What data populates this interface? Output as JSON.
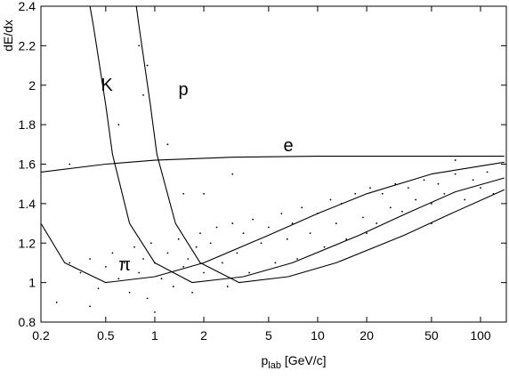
{
  "chart_data": {
    "type": "line",
    "ylabel": "dE/dx",
    "xlabel": {
      "main": "p",
      "sub": "lab",
      "unit": " [GeV/c]"
    },
    "log_x": true,
    "xlim": [
      0.2,
      144
    ],
    "xticks": [
      0.2,
      0.5,
      1,
      2,
      5,
      10,
      20,
      50,
      100
    ],
    "ylim": [
      0.8,
      2.4
    ],
    "yticks": [
      0.8,
      1,
      1.2,
      1.4,
      1.6,
      1.8,
      2,
      2.2,
      2.4
    ],
    "color": "#000000",
    "series": [
      {
        "name": "K",
        "x": [
          0.4,
          0.42,
          0.5,
          0.55,
          0.7,
          1,
          1.7,
          3.5,
          7,
          18,
          35,
          70,
          140
        ],
        "values": [
          2.4,
          2.3,
          1.9,
          1.65,
          1.3,
          1.1,
          1.0,
          1.03,
          1.1,
          1.24,
          1.35,
          1.46,
          1.53
        ]
      },
      {
        "name": "p",
        "x": [
          0.77,
          0.8,
          0.94,
          1.03,
          1.34,
          1.9,
          3.3,
          6.6,
          13,
          34,
          66,
          140
        ],
        "values": [
          2.4,
          2.3,
          1.9,
          1.65,
          1.3,
          1.1,
          1.0,
          1.03,
          1.1,
          1.24,
          1.35,
          1.47
        ]
      },
      {
        "name": "e",
        "x": [
          0.2,
          0.5,
          1,
          3,
          10,
          140
        ],
        "values": [
          1.56,
          1.6,
          1.62,
          1.635,
          1.64,
          1.64
        ]
      },
      {
        "name": "π",
        "x": [
          0.2,
          0.28,
          0.5,
          1,
          2,
          5,
          10,
          20,
          50,
          140
        ],
        "values": [
          1.3,
          1.1,
          1.0,
          1.03,
          1.1,
          1.24,
          1.35,
          1.45,
          1.55,
          1.61
        ]
      }
    ],
    "scatter": {
      "x": [
        0.3,
        0.35,
        0.4,
        0.45,
        0.5,
        0.55,
        0.6,
        0.65,
        0.7,
        0.75,
        0.8,
        0.85,
        0.9,
        0.95,
        1.0,
        1.1,
        1.2,
        1.3,
        1.4,
        1.5,
        1.6,
        1.7,
        1.8,
        1.9,
        2.0,
        2.2,
        2.4,
        2.6,
        2.8,
        3.0,
        3.2,
        3.5,
        3.8,
        4.0,
        4.5,
        5,
        5.5,
        6,
        6.5,
        7,
        7.5,
        8,
        9,
        10,
        11,
        12,
        13,
        14,
        15,
        17,
        19,
        21,
        23,
        25,
        28,
        30,
        33,
        36,
        40,
        45,
        50,
        55,
        60,
        70,
        80,
        90,
        100,
        110,
        120,
        0.25,
        0.3,
        0.6,
        0.8,
        1.2,
        1.5,
        0.4,
        1.0,
        3,
        20,
        50,
        70,
        0.85,
        0.9,
        2
      ],
      "values": [
        1.1,
        1.05,
        1.12,
        0.97,
        1.08,
        1.15,
        1.02,
        1.1,
        0.95,
        1.18,
        1.05,
        1.12,
        0.92,
        1.2,
        1.1,
        1.02,
        1.15,
        0.98,
        1.22,
        1.08,
        1.12,
        0.95,
        1.18,
        1.25,
        1.05,
        1.2,
        1.28,
        1.1,
        0.98,
        1.3,
        1.15,
        1.25,
        1.05,
        1.32,
        1.2,
        1.28,
        1.1,
        1.35,
        1.22,
        1.3,
        1.12,
        1.38,
        1.25,
        1.35,
        1.18,
        1.42,
        1.3,
        1.4,
        1.22,
        1.45,
        1.33,
        1.48,
        1.3,
        1.45,
        1.38,
        1.5,
        1.36,
        1.48,
        1.42,
        1.52,
        1.4,
        1.5,
        1.45,
        1.55,
        1.42,
        1.52,
        1.48,
        1.56,
        1.45,
        0.9,
        1.6,
        1.8,
        2.2,
        1.7,
        1.45,
        0.88,
        0.85,
        1.55,
        1.25,
        1.3,
        1.62,
        1.95,
        2.1,
        1.45
      ]
    }
  }
}
